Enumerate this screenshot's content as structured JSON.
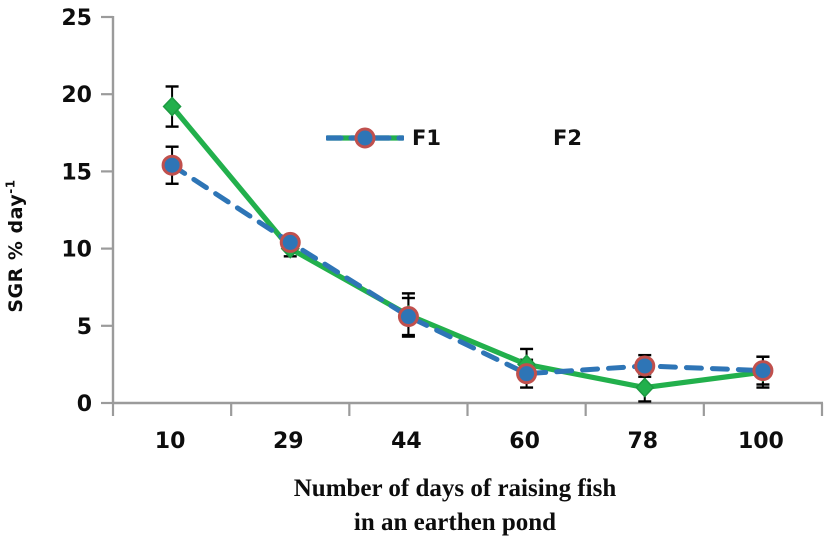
{
  "chart_data": {
    "type": "line",
    "title": "",
    "categories": [
      "10",
      "29",
      "44",
      "60",
      "78",
      "100"
    ],
    "series": [
      {
        "name": "F1",
        "values": [
          19.2,
          10.0,
          5.7,
          2.5,
          1.0,
          2.0
        ],
        "errors": [
          1.3,
          0.5,
          1.4,
          1.0,
          0.9,
          1.0
        ],
        "color": "#22b04c",
        "marker": "diamond",
        "marker_fill": "#22b04c",
        "marker_stroke": "#1d9a42",
        "line_style": "solid"
      },
      {
        "name": "F2",
        "values": [
          15.4,
          10.4,
          5.6,
          1.9,
          2.4,
          2.1
        ],
        "errors": [
          1.2,
          0.4,
          1.2,
          0.9,
          0.7,
          0.9
        ],
        "color": "#2e75b6",
        "marker": "circle",
        "marker_fill": "#2e75b6",
        "marker_stroke": "#c0504d",
        "line_style": "dashed"
      }
    ],
    "ylabel_text": "SGR % day",
    "ylabel_sup": "-1",
    "xlabel_lines": [
      "Number of days of raising fish",
      "in an earthen pond"
    ],
    "ylim": [
      0,
      25
    ],
    "ytick_step": 5,
    "ytick_labels": [
      "0",
      "5",
      "10",
      "15",
      "20",
      "25"
    ],
    "axis_color": "#9b9b9b",
    "error_bar_color": "#000000",
    "tick_label_color": "#0d0d0d",
    "legend_position": "top-center",
    "grid": "off"
  }
}
